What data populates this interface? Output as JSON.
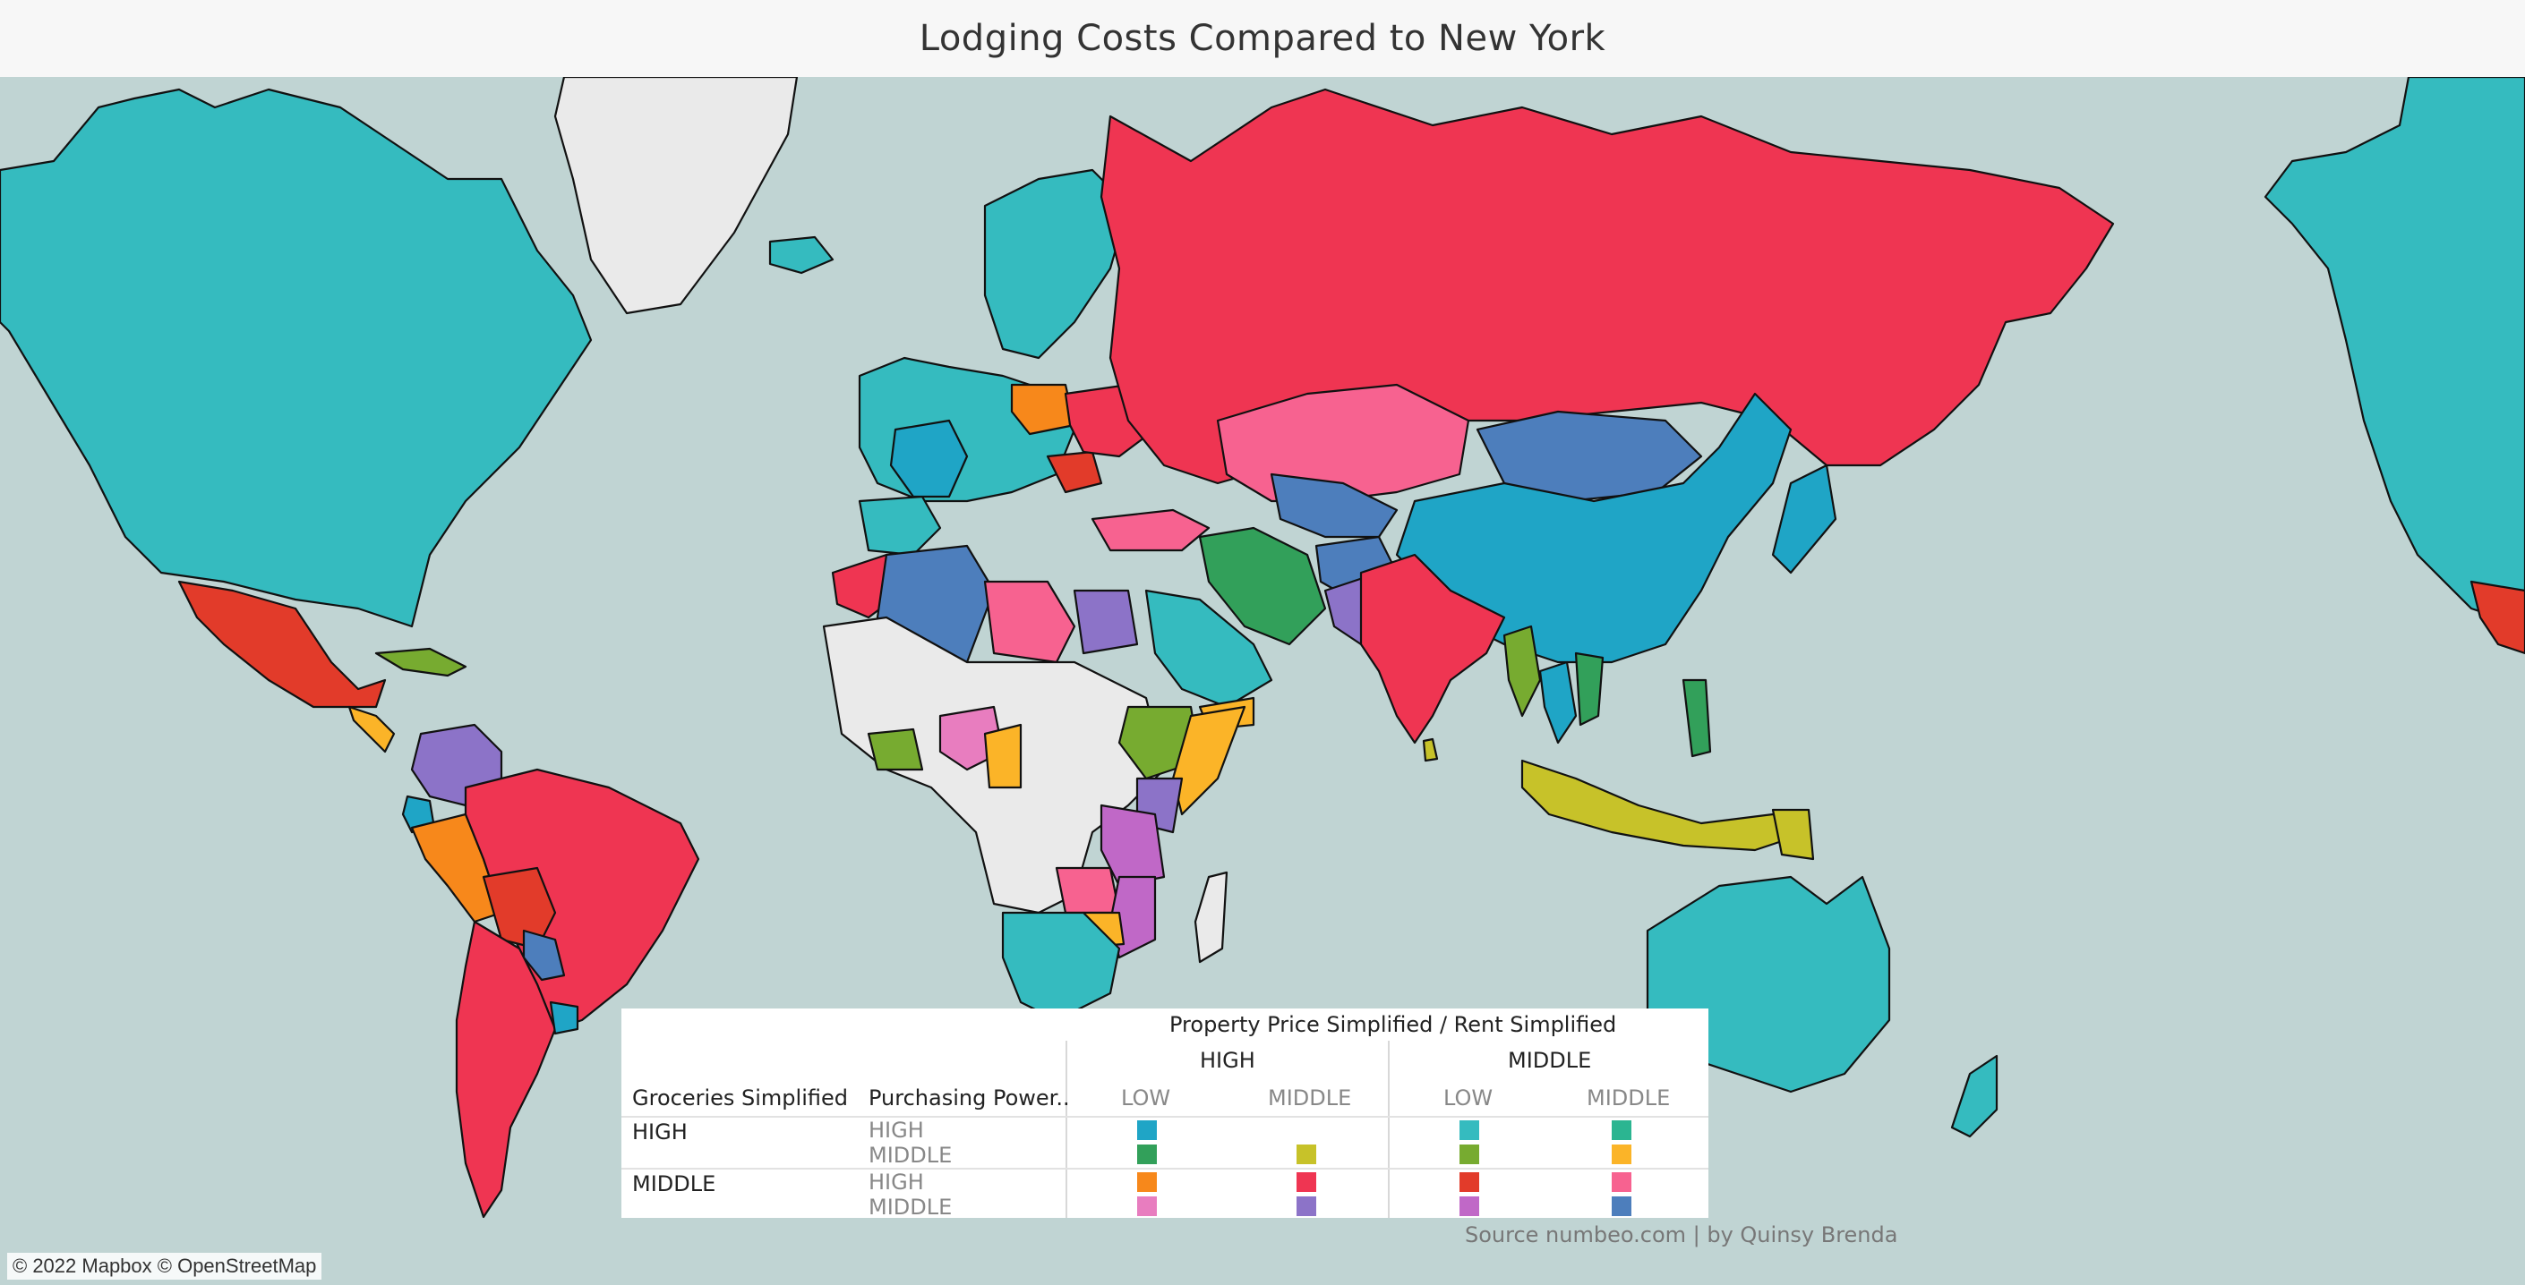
{
  "title": "Lodging Costs Compared to New York",
  "legend": {
    "top_header": "Property Price Simplified  /  Rent Simplified",
    "col_group_1": "HIGH",
    "col_group_2": "MIDDLE",
    "row_header_1": "Groceries Simplified",
    "row_header_2": "Purchasing Power..",
    "sub_low_1": "LOW",
    "sub_middle_1": "MIDDLE",
    "sub_low_2": "LOW",
    "sub_middle_2": "MIDDLE",
    "row_high": "HIGH",
    "row_middle": "MIDDLE",
    "pp_high_a": "HIGH",
    "pp_middle_a": "MIDDLE",
    "pp_high_b": "HIGH",
    "pp_middle_b": "MIDDLE",
    "swatch_colors": {
      "teal_blue": "#1fa5c6",
      "green": "#32a05a",
      "yellow": "#c7c229",
      "teal": "#35bbbf",
      "sea_green": "#2bb591",
      "lime": "#77ab30",
      "gold": "#fbb428",
      "orange": "#f7881b",
      "crimson": "#ef3552",
      "red": "#e23b2a",
      "pink": "#f76290",
      "light_pink": "#e87dbf",
      "purple": "#8c73c8",
      "orchid": "#c068c7",
      "blue": "#4d7ebc"
    }
  },
  "source_text": "Source numbeo.com | by Quinsy Brenda",
  "attribution": "© 2022 Mapbox © OpenStreetMap",
  "map_colors": {
    "ocean": "#c0d4d3",
    "no_data": "#eaeaea"
  }
}
